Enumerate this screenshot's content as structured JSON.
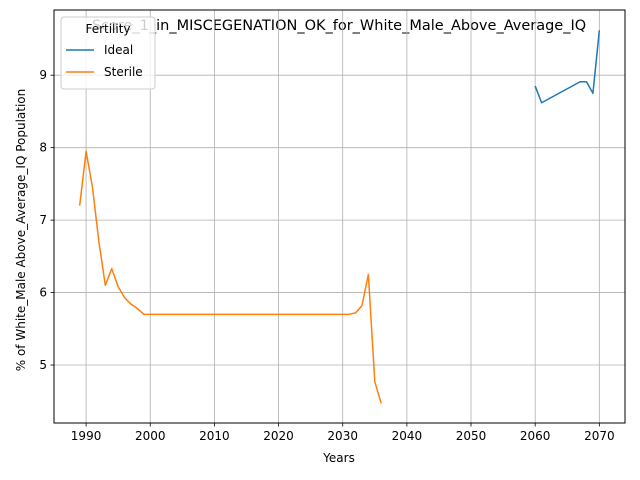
{
  "chart_data": {
    "type": "line",
    "title": "Score_1_in_MISCEGENATION_OK_for_White_Male_Above_Average_IQ",
    "xlabel": "Years",
    "ylabel": "% of White_Male Above_Average_IQ Population",
    "xlim": [
      1985,
      2074
    ],
    "ylim": [
      4.2,
      9.9
    ],
    "xticks": [
      1990,
      2000,
      2010,
      2020,
      2030,
      2040,
      2050,
      2060,
      2070
    ],
    "yticks": [
      5,
      6,
      7,
      8,
      9
    ],
    "grid": true,
    "legend": {
      "title": "Fertility",
      "position": "top-left"
    },
    "series": [
      {
        "name": "Ideal",
        "color": "#1f77b4",
        "x": [
          2060,
          2061,
          2067,
          2068,
          2069,
          2070
        ],
        "y": [
          8.85,
          8.62,
          8.91,
          8.91,
          8.75,
          9.62
        ]
      },
      {
        "name": "Sterile",
        "color": "#ff7f0e",
        "x": [
          1989,
          1990,
          1991,
          1992,
          1993,
          1994,
          1995,
          1996,
          1997,
          1998,
          1999,
          2000,
          2005,
          2010,
          2015,
          2020,
          2025,
          2030,
          2031,
          2032,
          2033,
          2034,
          2035,
          2036
        ],
        "y": [
          7.2,
          7.95,
          7.45,
          6.7,
          6.1,
          6.33,
          6.08,
          5.93,
          5.84,
          5.78,
          5.7,
          5.7,
          5.7,
          5.7,
          5.7,
          5.7,
          5.7,
          5.7,
          5.7,
          5.72,
          5.82,
          6.25,
          4.77,
          4.47
        ]
      }
    ]
  }
}
